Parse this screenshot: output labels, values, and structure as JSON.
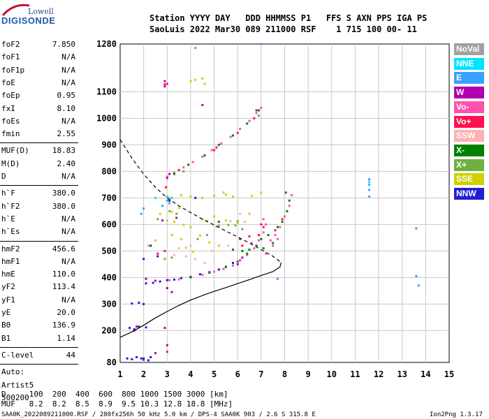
{
  "logo": {
    "top": "Lowell",
    "bottom": "DIGISONDE"
  },
  "header": {
    "line1": "Station YYYY DAY   DDD HHMMSS P1   FFS S AXN PPS IGA PS",
    "line2": "SaoLuis 2022 Mar30 089 211000 RSF    1 715 100 00- 11"
  },
  "params": {
    "group1": [
      {
        "name": "foF2",
        "value": "7.850"
      },
      {
        "name": "foF1",
        "value": "N/A"
      },
      {
        "name": "foF1p",
        "value": "N/A"
      },
      {
        "name": "foE",
        "value": "N/A"
      },
      {
        "name": "foEp",
        "value": "0.95"
      },
      {
        "name": "fxI",
        "value": "8.10"
      },
      {
        "name": "foEs",
        "value": "N/A"
      },
      {
        "name": "fmin",
        "value": "2.55"
      }
    ],
    "group2": [
      {
        "name": "MUF(D)",
        "value": "18.83"
      },
      {
        "name": "M(D)",
        "value": "2.40"
      },
      {
        "name": "D",
        "value": "N/A"
      }
    ],
    "group3": [
      {
        "name": "h`F",
        "value": "380.0"
      },
      {
        "name": "h`F2",
        "value": "380.0"
      },
      {
        "name": "h`E",
        "value": "N/A"
      },
      {
        "name": "h`Es",
        "value": "N/A"
      }
    ],
    "group4": [
      {
        "name": "hmF2",
        "value": "456.6"
      },
      {
        "name": "hmF1",
        "value": "N/A"
      },
      {
        "name": "hmE",
        "value": "110.0"
      },
      {
        "name": "yF2",
        "value": "113.4"
      },
      {
        "name": "yF1",
        "value": "N/A"
      },
      {
        "name": "yE",
        "value": "20.0"
      },
      {
        "name": "B0",
        "value": "136.9"
      },
      {
        "name": "B1",
        "value": "1.14"
      }
    ],
    "clevel": {
      "name": "C-level",
      "value": "44"
    },
    "auto": [
      "Auto:",
      "Artist5",
      "500200"
    ]
  },
  "legend": [
    {
      "label": "NoVal",
      "color": "#a0a0a0"
    },
    {
      "label": "NNE",
      "color": "#00e5ff"
    },
    {
      "label": "E",
      "color": "#3aa0ff"
    },
    {
      "label": "W",
      "color": "#b000b0"
    },
    {
      "label": "Vo-",
      "color": "#ff4fb0"
    },
    {
      "label": "Vo+",
      "color": "#ff1050"
    },
    {
      "label": "SSW",
      "color": "#ffb0b0"
    },
    {
      "label": "X-",
      "color": "#008000"
    },
    {
      "label": "X+",
      "color": "#70b040"
    },
    {
      "label": "SSE",
      "color": "#d0d000"
    },
    {
      "label": "NNW",
      "color": "#2020d0"
    }
  ],
  "footer": {
    "d_row": "D     100  200  400  600  800 1000 1500 3000 [km]",
    "muf_row": "MUF   8.2  8.2  8.5  8.9  9.5 10.3 12.8 18.8 [MHz]",
    "file_info": "SAA0K_2022089211000.RSF / 280fx256h 50 kHz 5.0 km / DPS-4 SAA0K 903 / 2.6 S 315.8 E",
    "version": "Ion2Png 1.3.17"
  },
  "chart_data": {
    "type": "scatter",
    "xlim": [
      1,
      15
    ],
    "ylim": [
      80,
      1280
    ],
    "x_ticks": [
      1,
      2,
      3,
      4,
      5,
      6,
      7,
      8,
      9,
      10,
      11,
      12,
      13,
      14,
      15
    ],
    "y_ticks": [
      80,
      200,
      300,
      400,
      500,
      600,
      700,
      800,
      900,
      1000,
      1100,
      1280
    ],
    "grid": true,
    "legend_position": "right",
    "series": [
      {
        "color": "#2020d0",
        "points": [
          [
            1.3,
            95
          ],
          [
            1.5,
            92
          ],
          [
            1.7,
            100
          ],
          [
            2.0,
            95
          ],
          [
            2.2,
            88
          ],
          [
            1.4,
            210
          ],
          [
            1.6,
            205
          ],
          [
            1.8,
            215
          ],
          [
            2.1,
            212
          ],
          [
            1.5,
            302
          ],
          [
            1.8,
            305
          ],
          [
            2.0,
            300
          ],
          [
            2.1,
            378
          ],
          [
            2.4,
            380
          ],
          [
            2.7,
            385
          ],
          [
            3.0,
            390
          ],
          [
            3.3,
            392
          ],
          [
            3.6,
            398
          ],
          [
            4.0,
            402
          ],
          [
            4.4,
            412
          ],
          [
            4.8,
            420
          ],
          [
            5.2,
            430
          ],
          [
            5.5,
            440
          ],
          [
            5.8,
            455
          ],
          [
            6.1,
            465
          ],
          [
            2.0,
            470
          ],
          [
            2.3,
            520
          ],
          [
            2.6,
            480
          ],
          [
            3.1,
            690
          ],
          [
            4.2,
            700
          ],
          [
            1.9,
            95
          ],
          [
            2.3,
            100
          ]
        ]
      },
      {
        "color": "#ff4fb0",
        "points": [
          [
            3.0,
            780
          ],
          [
            3.3,
            795
          ],
          [
            3.7,
            815
          ],
          [
            4.1,
            835
          ],
          [
            4.5,
            855
          ],
          [
            4.9,
            880
          ],
          [
            5.3,
            905
          ],
          [
            5.7,
            930
          ],
          [
            6.1,
            960
          ],
          [
            6.5,
            990
          ],
          [
            6.8,
            1020
          ],
          [
            7.0,
            1040
          ],
          [
            3.1,
            390
          ],
          [
            3.5,
            393
          ],
          [
            4.0,
            400
          ],
          [
            4.5,
            410
          ],
          [
            5.0,
            422
          ],
          [
            5.4,
            432
          ],
          [
            5.8,
            445
          ],
          [
            6.1,
            465
          ],
          [
            6.4,
            485
          ],
          [
            6.7,
            510
          ],
          [
            6.9,
            540
          ],
          [
            7.1,
            570
          ],
          [
            7.2,
            600
          ],
          [
            7.1,
            620
          ],
          [
            6.9,
            560
          ],
          [
            6.6,
            530
          ],
          [
            7.4,
            540
          ],
          [
            7.6,
            560
          ],
          [
            7.8,
            590
          ],
          [
            8.0,
            630
          ],
          [
            8.2,
            670
          ],
          [
            8.3,
            710
          ],
          [
            7.2,
            490
          ],
          [
            7.5,
            520
          ],
          [
            7.7,
            545
          ]
        ]
      },
      {
        "color": "#008000",
        "points": [
          [
            3.3,
            790
          ],
          [
            3.9,
            825
          ],
          [
            4.6,
            860
          ],
          [
            5.2,
            900
          ],
          [
            5.8,
            935
          ],
          [
            6.4,
            980
          ],
          [
            6.9,
            1030
          ],
          [
            4.0,
            402
          ],
          [
            4.8,
            418
          ],
          [
            5.5,
            440
          ],
          [
            6.0,
            460
          ],
          [
            6.4,
            490
          ],
          [
            6.8,
            520
          ],
          [
            7.0,
            545
          ],
          [
            7.3,
            560
          ],
          [
            7.7,
            590
          ],
          [
            7.9,
            610
          ],
          [
            8.1,
            650
          ],
          [
            8.2,
            690
          ],
          [
            8.05,
            720
          ],
          [
            7.5,
            530
          ],
          [
            7.1,
            510
          ],
          [
            6.2,
            500
          ],
          [
            6.5,
            505
          ],
          [
            5.8,
            505
          ],
          [
            5.2,
            610
          ]
        ]
      },
      {
        "color": "#b000b0",
        "points": [
          [
            2.9,
            1120
          ],
          [
            2.9,
            1140
          ],
          [
            3.0,
            775
          ],
          [
            3.1,
            790
          ],
          [
            2.8,
            615
          ],
          [
            2.1,
            395
          ],
          [
            2.5,
            388
          ],
          [
            3.0,
            360
          ],
          [
            3.2,
            345
          ],
          [
            2.9,
            210
          ],
          [
            1.7,
            215
          ],
          [
            1.6,
            200
          ],
          [
            4.5,
            1050
          ],
          [
            6.8,
            1030
          ],
          [
            2.0,
            90
          ],
          [
            2.5,
            115
          ],
          [
            3.0,
            145
          ],
          [
            6.2,
            475
          ],
          [
            6.0,
            450
          ],
          [
            3.4,
            625
          ]
        ]
      },
      {
        "color": "#ff1050",
        "points": [
          [
            2.9,
            1128
          ],
          [
            3.5,
            805
          ],
          [
            5.0,
            880
          ],
          [
            6.0,
            945
          ],
          [
            6.7,
            1000
          ],
          [
            6.9,
            560
          ],
          [
            7.1,
            590
          ],
          [
            7.0,
            600
          ],
          [
            6.5,
            555
          ],
          [
            7.6,
            578
          ],
          [
            7.9,
            620
          ],
          [
            3.0,
            1130
          ],
          [
            2.95,
            740
          ],
          [
            6.2,
            520
          ],
          [
            6.1,
            545
          ],
          [
            5.1,
            890
          ],
          [
            3.0,
            120
          ],
          [
            2.6,
            490
          ],
          [
            2.9,
            500
          ]
        ]
      },
      {
        "color": "#d0d000",
        "points": [
          [
            4.0,
            1140
          ],
          [
            4.2,
            1145
          ],
          [
            4.5,
            1150
          ],
          [
            3.1,
            700
          ],
          [
            3.6,
            710
          ],
          [
            4.0,
            705
          ],
          [
            4.5,
            700
          ],
          [
            5.0,
            708
          ],
          [
            5.5,
            712
          ],
          [
            4.5,
            620
          ],
          [
            5.0,
            630
          ],
          [
            5.5,
            615
          ],
          [
            6.0,
            605
          ],
          [
            3.3,
            610
          ],
          [
            3.7,
            598
          ],
          [
            4.0,
            590
          ],
          [
            5.4,
            720
          ],
          [
            5.8,
            705
          ],
          [
            2.7,
            640
          ],
          [
            3.0,
            615
          ],
          [
            6.5,
            640
          ],
          [
            2.2,
            520
          ],
          [
            2.5,
            540
          ],
          [
            3.2,
            560
          ],
          [
            3.6,
            545
          ],
          [
            4.4,
            558
          ],
          [
            4.8,
            532
          ],
          [
            5.2,
            520
          ],
          [
            3.8,
            512
          ],
          [
            4.1,
            497
          ],
          [
            6.6,
            708
          ],
          [
            7.0,
            720
          ],
          [
            4.6,
            1130
          ],
          [
            3.2,
            648
          ],
          [
            3.5,
            662
          ],
          [
            4.7,
            612
          ]
        ]
      },
      {
        "color": "#3aa0ff",
        "points": [
          [
            11.6,
            705
          ],
          [
            11.6,
            730
          ],
          [
            11.6,
            750
          ],
          [
            11.6,
            770
          ],
          [
            13.6,
            585
          ],
          [
            13.7,
            370
          ],
          [
            13.6,
            405
          ],
          [
            3.0,
            690
          ],
          [
            3.1,
            680
          ],
          [
            2.0,
            660
          ],
          [
            1.9,
            640
          ],
          [
            2.8,
            670
          ],
          [
            7.0,
            1280
          ],
          [
            4.2,
            1265
          ],
          [
            7.7,
            395
          ]
        ]
      },
      {
        "color": "#ffb0b0",
        "points": [
          [
            4.6,
            455
          ],
          [
            4.2,
            470
          ],
          [
            3.8,
            480
          ],
          [
            4.0,
            520
          ],
          [
            5.1,
            592
          ],
          [
            5.7,
            612
          ],
          [
            6.1,
            640
          ],
          [
            3.5,
            510
          ],
          [
            5.6,
            520
          ],
          [
            6.3,
            610
          ],
          [
            3.3,
            485
          ],
          [
            4.9,
            500
          ]
        ]
      },
      {
        "color": "#70b040",
        "points": [
          [
            3.1,
            650
          ],
          [
            3.4,
            640
          ],
          [
            5.6,
            598
          ],
          [
            6.0,
            612
          ],
          [
            5.2,
            595
          ],
          [
            4.3,
            545
          ],
          [
            4.7,
            560
          ],
          [
            6.9,
            1010
          ],
          [
            3.7,
            800
          ],
          [
            2.9,
            470
          ],
          [
            3.2,
            475
          ],
          [
            2.6,
            620
          ],
          [
            5.9,
            596
          ],
          [
            6.2,
            582
          ]
        ]
      },
      {
        "color": "#00e5ff",
        "points": [
          [
            3.0,
            705
          ],
          [
            3.2,
            700
          ],
          [
            2.5,
            700
          ],
          [
            11.6,
            760
          ]
        ]
      }
    ],
    "profile_curve": {
      "style": "solid",
      "points": [
        [
          1.0,
          175
        ],
        [
          1.5,
          195
        ],
        [
          2.0,
          220
        ],
        [
          2.5,
          248
        ],
        [
          3.0,
          272
        ],
        [
          3.5,
          295
        ],
        [
          4.0,
          315
        ],
        [
          4.5,
          332
        ],
        [
          5.0,
          348
        ],
        [
          5.5,
          362
        ],
        [
          6.0,
          377
        ],
        [
          6.5,
          392
        ],
        [
          7.0,
          408
        ],
        [
          7.5,
          422
        ],
        [
          7.8,
          440
        ],
        [
          7.85,
          456.6
        ]
      ]
    },
    "extrapolation_curve": {
      "style": "dashed",
      "points": [
        [
          1.0,
          920
        ],
        [
          1.5,
          850
        ],
        [
          2.0,
          790
        ],
        [
          2.5,
          740
        ],
        [
          3.0,
          700
        ],
        [
          3.5,
          670
        ],
        [
          4.0,
          645
        ],
        [
          4.5,
          620
        ],
        [
          5.0,
          598
        ],
        [
          5.5,
          575
        ],
        [
          6.0,
          553
        ],
        [
          6.5,
          530
        ],
        [
          7.0,
          505
        ],
        [
          7.5,
          480
        ],
        [
          7.85,
          456.6
        ]
      ]
    }
  }
}
